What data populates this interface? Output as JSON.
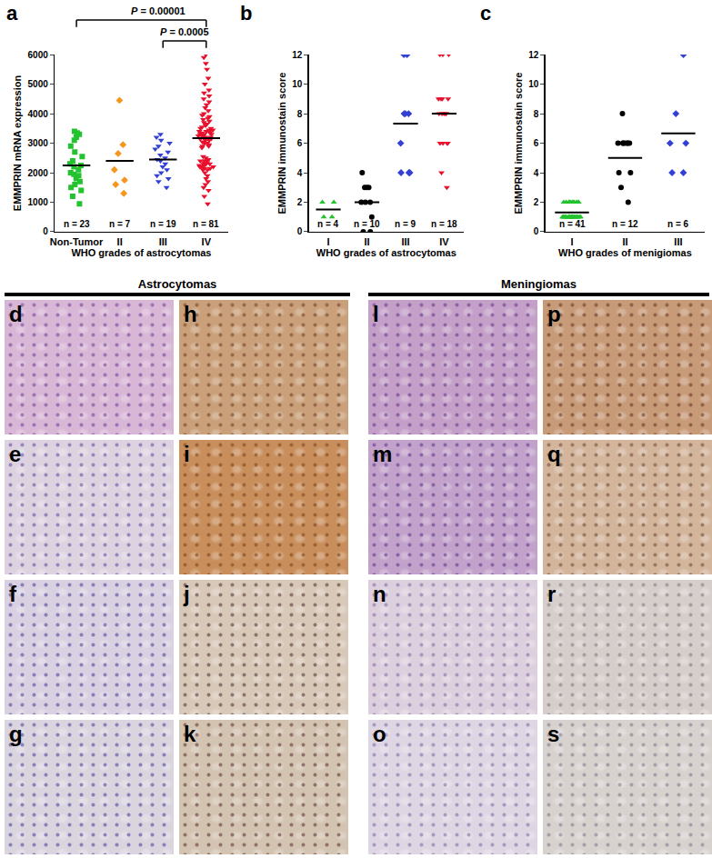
{
  "chart_data": [
    {
      "panel": "a",
      "type": "scatter",
      "x_label": "WHO grades of astrocytomas",
      "y_label": "EMMPRIN mRNA expression",
      "categories": [
        "Non-Tumor",
        "II",
        "III",
        "IV"
      ],
      "ylim": [
        0,
        6000
      ],
      "yticks": [
        0,
        1000,
        2000,
        3000,
        4000,
        5000,
        6000
      ],
      "grid": false,
      "groups": [
        {
          "category": "Non-Tumor",
          "color": "#22c32e",
          "marker": "square",
          "mean": 2250,
          "n_label": "n = 23",
          "values": [
            3400,
            3350,
            3300,
            3200,
            3100,
            2900,
            2700,
            2550,
            2400,
            2300,
            2250,
            2200,
            2100,
            2000,
            1950,
            1900,
            1800,
            1700,
            1600,
            1500,
            1400,
            1200,
            950
          ]
        },
        {
          "category": "II",
          "color": "#f5961e",
          "marker": "diamond",
          "mean": 2400,
          "n_label": "n = 7",
          "values": [
            4450,
            2950,
            2650,
            2100,
            1750,
            1600,
            1300
          ]
        },
        {
          "category": "III",
          "color": "#3340d6",
          "marker": "triangle-down",
          "mean": 2450,
          "n_label": "n = 19",
          "values": [
            3300,
            3200,
            3100,
            3000,
            2900,
            2800,
            2700,
            2600,
            2500,
            2450,
            2400,
            2300,
            2200,
            2100,
            2000,
            1900,
            1800,
            1700,
            1500
          ]
        },
        {
          "category": "IV",
          "color": "#e8112d",
          "marker": "triangle-down",
          "mean": 3170,
          "n_label": "n = 81",
          "values": [
            6000,
            5900,
            5700,
            5500,
            5200,
            5000,
            4800,
            4600,
            4500,
            4400,
            4300,
            4200,
            4100,
            4000,
            3950,
            3900,
            3800,
            3750,
            3700,
            3650,
            3600,
            3550,
            3500,
            3450,
            3400,
            3350,
            3300,
            3250,
            3200,
            3150,
            3500,
            3450,
            3400,
            3400,
            3350,
            3300,
            3300,
            3250,
            3200,
            3200,
            3150,
            3100,
            3100,
            3050,
            3000,
            3000,
            2950,
            2900,
            2900,
            2850,
            2400,
            2400,
            2350,
            2300,
            2300,
            2250,
            2200,
            2200,
            2150,
            2100,
            2550,
            2500,
            2450,
            2400,
            2350,
            2300,
            2250,
            2200,
            2150,
            2100,
            2000,
            1900,
            1800,
            1700,
            1600,
            1500,
            1400,
            1200,
            950,
            4700,
            3850
          ]
        }
      ],
      "comparisons": [
        {
          "from": "Non-Tumor",
          "to": "IV",
          "label": "P = 0.00001"
        },
        {
          "from": "III",
          "to": "IV",
          "label": "P = 0.0005"
        }
      ]
    },
    {
      "panel": "b",
      "type": "scatter",
      "x_label": "WHO grades of astrocytomas",
      "y_label": "EMMPRIN immunostain score",
      "categories": [
        "I",
        "II",
        "III",
        "IV"
      ],
      "ylim": [
        0,
        12
      ],
      "yticks": [
        0,
        2,
        4,
        6,
        8,
        10,
        12
      ],
      "grid": false,
      "groups": [
        {
          "category": "I",
          "color": "#22c32e",
          "marker": "triangle-up",
          "mean": 1.5,
          "n_label": "n = 4",
          "values": [
            2,
            2,
            1,
            1
          ]
        },
        {
          "category": "II",
          "color": "#000000",
          "marker": "circle",
          "mean": 2,
          "n_label": "n = 10",
          "values": [
            4,
            3,
            3,
            3,
            2,
            2,
            2,
            1,
            0,
            0
          ]
        },
        {
          "category": "III",
          "color": "#3340d6",
          "marker": "diamond",
          "mean": 7.33,
          "n_label": "n = 9",
          "values": [
            12,
            12,
            8,
            8,
            8,
            6,
            4,
            4,
            4
          ]
        },
        {
          "category": "IV",
          "color": "#e8112d",
          "marker": "triangle-down",
          "mean": 8,
          "n_label": "n = 18",
          "values": [
            12,
            12,
            12,
            9,
            9,
            9,
            9,
            8,
            8,
            8,
            8,
            8,
            6,
            6,
            6,
            6,
            4,
            3
          ]
        }
      ],
      "comparisons": []
    },
    {
      "panel": "c",
      "type": "scatter",
      "x_label": "WHO grades of menigiomas",
      "y_label": "EMMPRIN immunostain score",
      "categories": [
        "I",
        "II",
        "III"
      ],
      "ylim": [
        0,
        12
      ],
      "yticks": [
        0,
        2,
        4,
        6,
        8,
        10,
        12
      ],
      "grid": false,
      "groups": [
        {
          "category": "I",
          "color": "#22c32e",
          "marker": "triangle-up",
          "mean": 1.3,
          "n_label": "n = 41",
          "values": [
            2,
            2,
            2,
            2,
            2,
            2,
            2,
            2,
            2,
            2,
            2,
            2,
            1,
            1,
            1,
            1,
            1,
            1,
            1,
            1,
            1,
            1,
            1,
            1,
            1,
            1,
            1,
            1,
            1,
            1,
            1,
            1,
            1,
            1,
            1,
            1,
            1,
            1,
            1,
            1,
            1
          ]
        },
        {
          "category": "II",
          "color": "#000000",
          "marker": "circle",
          "mean": 5,
          "n_label": "n = 12",
          "values": [
            8,
            6,
            6,
            6,
            6,
            6,
            6,
            6,
            4,
            4,
            3,
            2
          ]
        },
        {
          "category": "III",
          "color": "#3340d6",
          "marker": "diamond",
          "mean": 6.67,
          "n_label": "n = 6",
          "values": [
            12,
            8,
            6,
            6,
            4,
            4
          ]
        }
      ],
      "comparisons": []
    }
  ],
  "image_panels": {
    "headers": [
      "Astrocytomas",
      "Meningiomas"
    ],
    "labels": [
      [
        "d",
        "h",
        "l",
        "p"
      ],
      [
        "e",
        "i",
        "m",
        "q"
      ],
      [
        "f",
        "j",
        "n",
        "r"
      ],
      [
        "g",
        "k",
        "o",
        "s"
      ]
    ]
  }
}
